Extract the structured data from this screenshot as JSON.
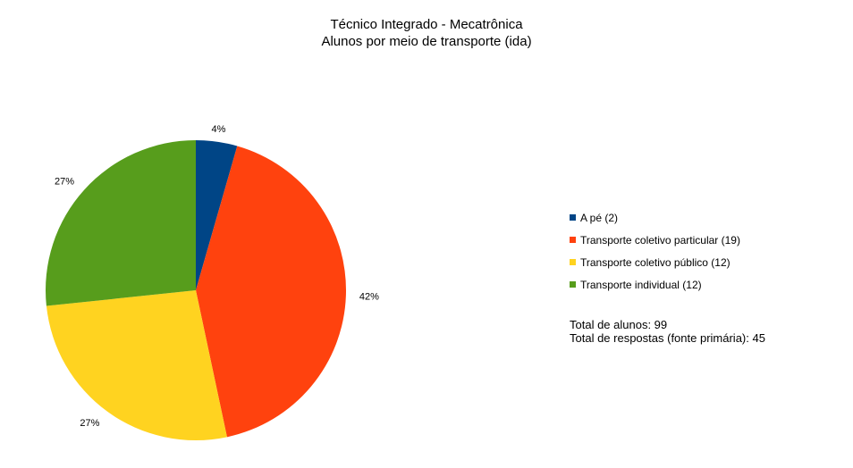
{
  "chart_data": {
    "type": "pie",
    "title": "Técnico Integrado - Mecatrônica",
    "subtitle": "Alunos por meio de transporte (ida)",
    "slices": [
      {
        "label": "A pé (2)",
        "value": 2,
        "percent_label": "4%",
        "color": "#004586"
      },
      {
        "label": "Transporte coletivo particular (19)",
        "value": 19,
        "percent_label": "42%",
        "color": "#ff420e"
      },
      {
        "label": "Transporte coletivo público (12)",
        "value": 12,
        "percent_label": "27%",
        "color": "#ffd320"
      },
      {
        "label": "Transporte individual (12)",
        "value": 12,
        "percent_label": "27%",
        "color": "#579d1c"
      }
    ],
    "legend_position": "right"
  },
  "notes": {
    "line1": "Total de alunos: 99",
    "line2": "Total de respostas (fonte primária): 45"
  }
}
